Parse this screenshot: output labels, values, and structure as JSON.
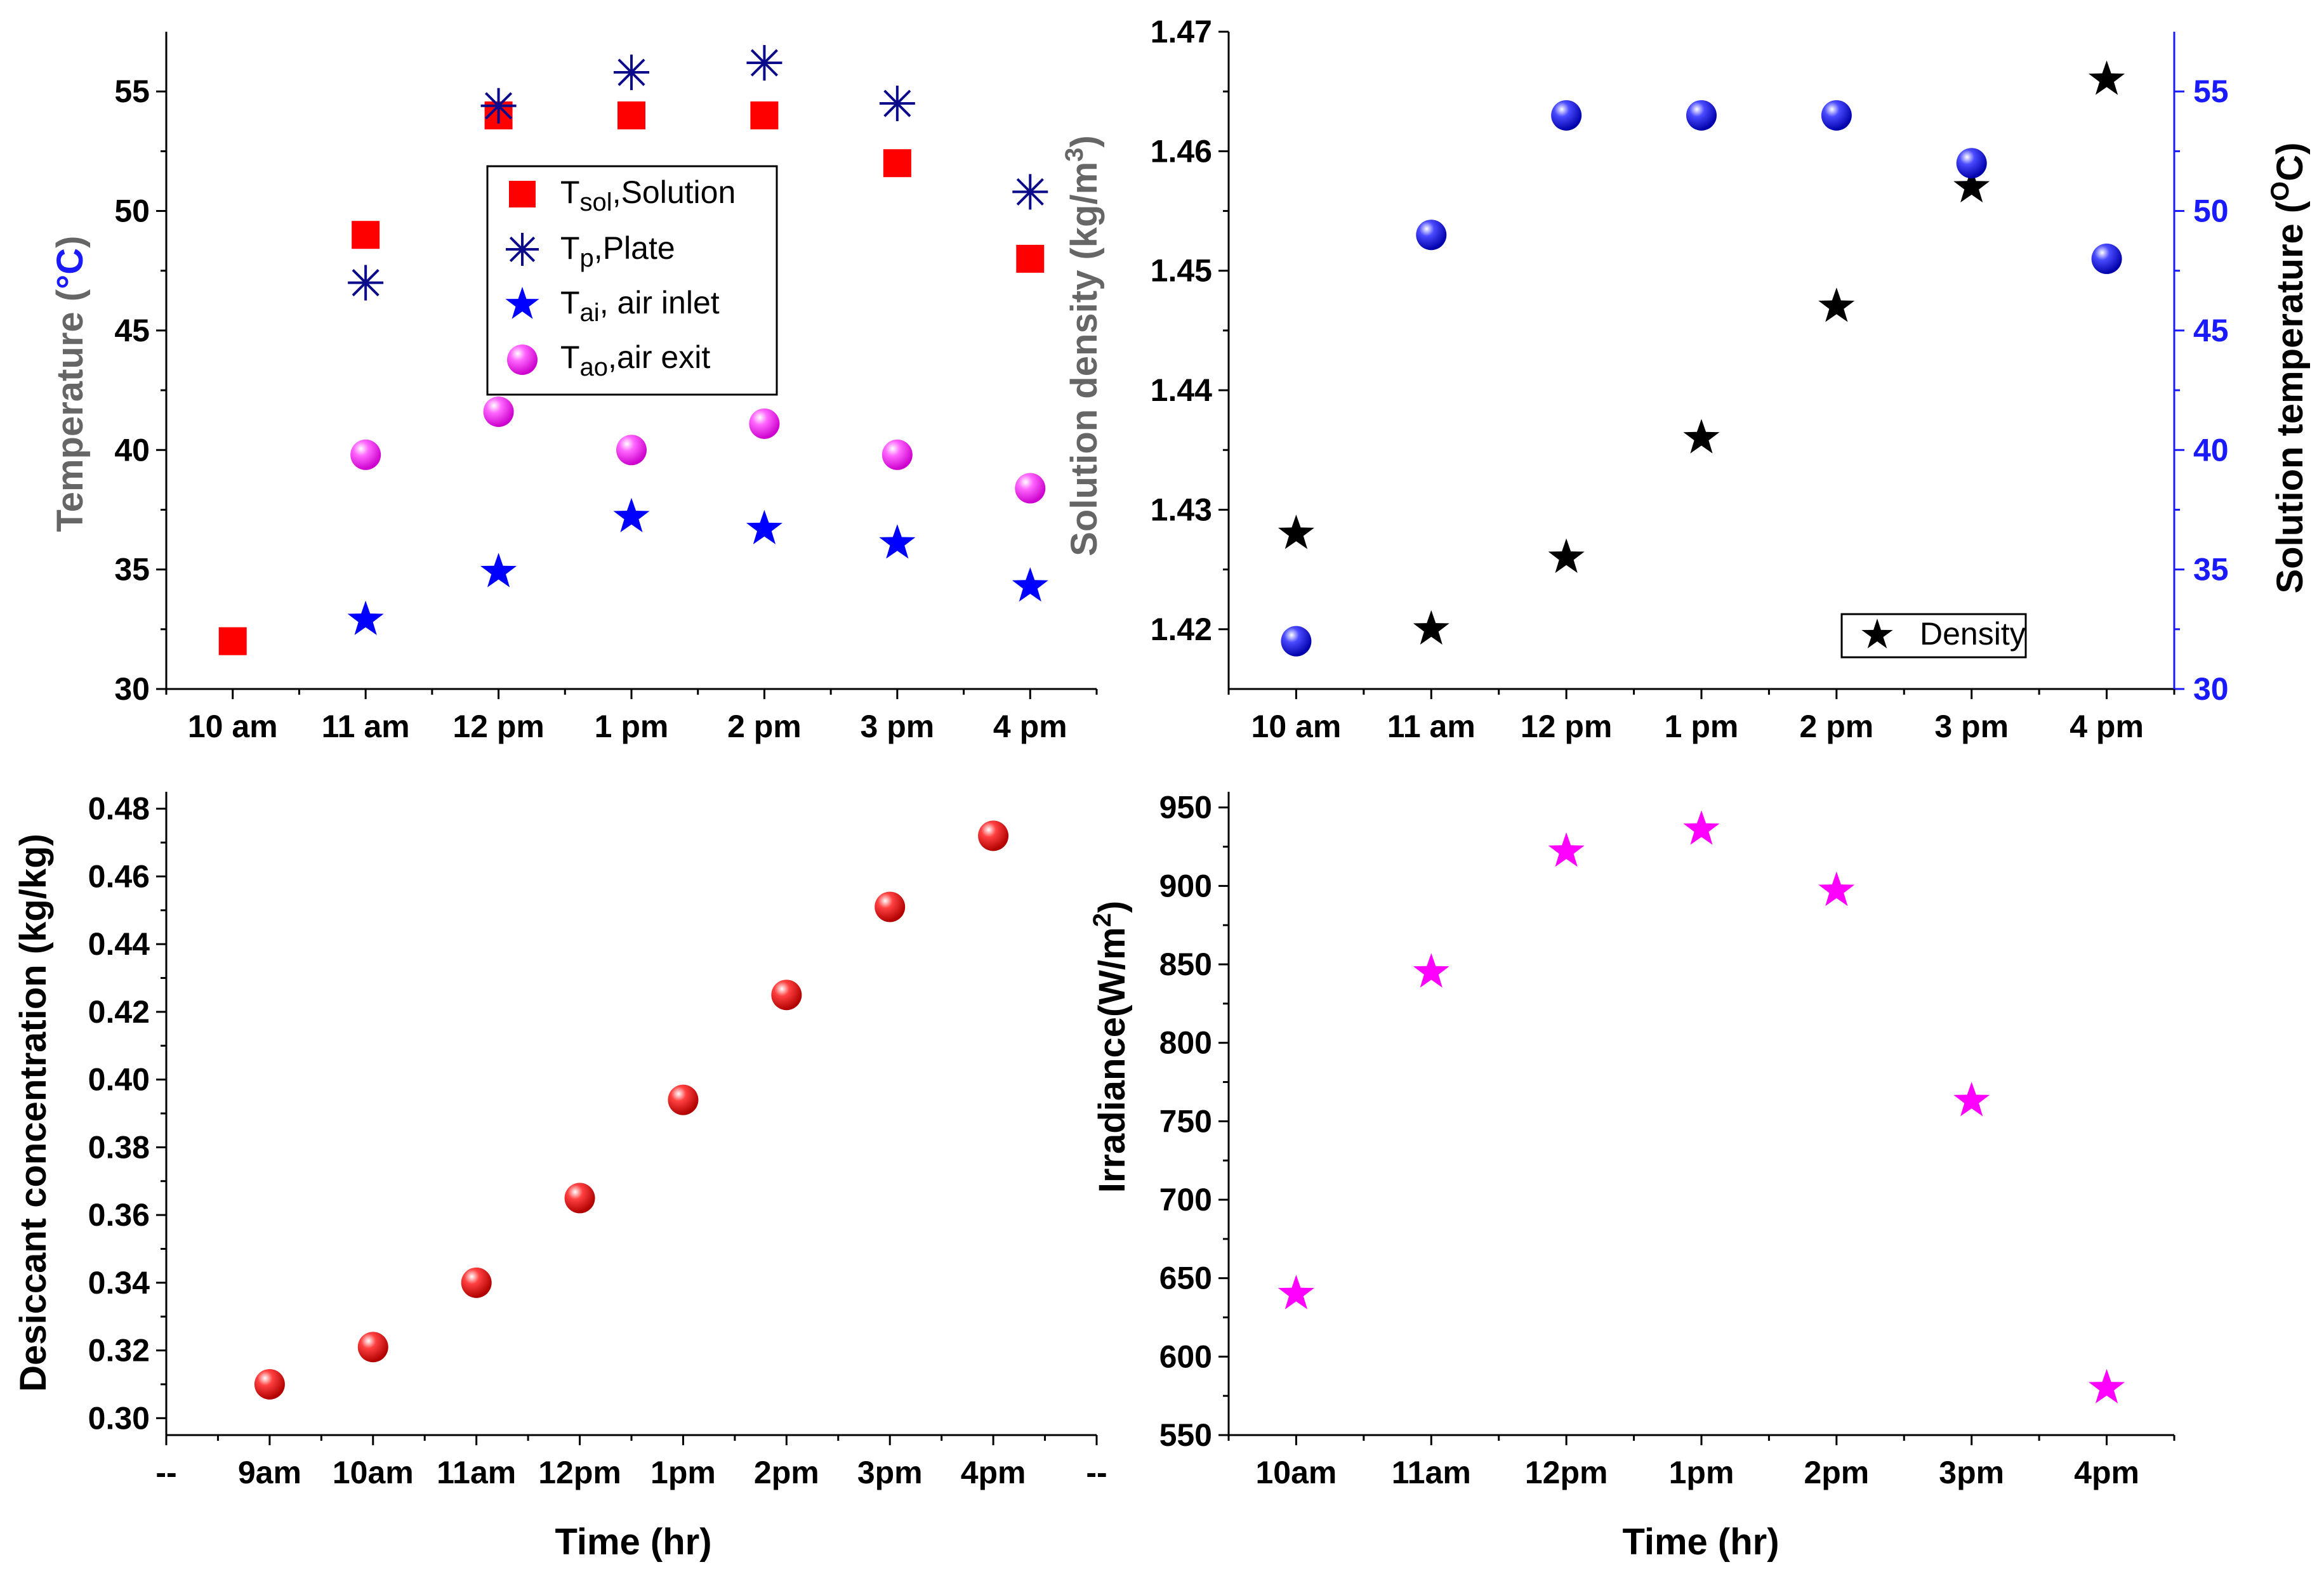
{
  "colors": {
    "axis": "#000000",
    "grey_label": "#666666",
    "blue_label": "#1a1aff",
    "red": "#ff0000",
    "navy": "#0a0a8a",
    "blue": "#0000ff",
    "magenta": "#ff00ff",
    "black": "#000000",
    "sphere_red": "#e00000",
    "sphere_blue": "#1010d0"
  },
  "chart_data": [
    {
      "id": "temperature",
      "type": "scatter",
      "ylabel": "Temperature (°C)",
      "ylabel_parts": [
        "Temperature (",
        "°C",
        ")"
      ],
      "xlabel": "",
      "ylim": [
        30,
        57.5
      ],
      "yticks": [
        30,
        35,
        40,
        45,
        50,
        55
      ],
      "xlim": [
        0.5,
        7.5
      ],
      "categories": [
        "10 am",
        "11 am",
        "12 pm",
        "1 pm",
        "2 pm",
        "3 pm",
        "4 pm"
      ],
      "series": [
        {
          "name": "Tsol,Solution",
          "sym": "T",
          "sub": "sol",
          "rest": ",Solution",
          "marker": "square",
          "color": "#ff0000",
          "x": [
            1,
            2,
            3,
            4,
            5,
            6,
            7
          ],
          "values": [
            32,
            49,
            54,
            54,
            54,
            52,
            48
          ]
        },
        {
          "name": "Tp,Plate",
          "sym": "T",
          "sub": "p",
          "rest": ",Plate",
          "marker": "asterisk",
          "color": "#0a0a8a",
          "x": [
            2,
            3,
            4,
            5,
            6,
            7
          ],
          "values": [
            47,
            54.4,
            55.8,
            56.2,
            54.5,
            50.8
          ]
        },
        {
          "name": "Tai, air inlet",
          "sym": "T",
          "sub": "ai",
          "rest": ", air inlet",
          "marker": "star",
          "color": "#0000ff",
          "x": [
            2,
            3,
            4,
            5,
            6,
            7
          ],
          "values": [
            32.9,
            34.9,
            37.2,
            36.7,
            36.1,
            34.3
          ]
        },
        {
          "name": "Tao,air exit",
          "sym": "T",
          "sub": "ao",
          "rest": ",air exit",
          "marker": "sphere",
          "color": "#ff00ff",
          "x": [
            2,
            3,
            4,
            5,
            6,
            7
          ],
          "values": [
            39.8,
            41.6,
            40,
            41.1,
            39.8,
            38.4
          ]
        }
      ],
      "legend": "top-center"
    },
    {
      "id": "density",
      "type": "scatter",
      "ylabel": "Solution density (kg/m3)",
      "ylabel_parts": [
        "Solution density (kg/m",
        "3",
        ")"
      ],
      "y2label": "Solution temperature (OC)",
      "y2label_parts": [
        "Solution temperature (",
        "O",
        "C)"
      ],
      "ylim": [
        1.415,
        1.47
      ],
      "yticks": [
        1.42,
        1.43,
        1.44,
        1.45,
        1.46,
        1.47
      ],
      "ytick_labels": [
        "1.42",
        "1.43",
        "1.44",
        "1.45",
        "1.46",
        "1.47"
      ],
      "y2lim": [
        30,
        57.5
      ],
      "y2ticks": [
        30,
        35,
        40,
        45,
        50,
        55
      ],
      "xlim": [
        0.5,
        7.5
      ],
      "categories": [
        "10 am",
        "11 am",
        "12 pm",
        "1 pm",
        "2 pm",
        "3 pm",
        "4 pm"
      ],
      "series": [
        {
          "name": "Density",
          "axis": "left",
          "marker": "star",
          "color": "#000000",
          "x": [
            1,
            2,
            3,
            4,
            5,
            6,
            7
          ],
          "values": [
            1.428,
            1.42,
            1.426,
            1.436,
            1.447,
            1.457,
            1.466
          ]
        },
        {
          "name": "Solution temperature",
          "axis": "right",
          "marker": "sphere",
          "color": "#1010d0",
          "x": [
            1,
            2,
            3,
            4,
            5,
            6,
            7
          ],
          "values": [
            32,
            49,
            54,
            54,
            54,
            52,
            48
          ]
        }
      ],
      "legend": "bottom-right",
      "legend_entries": [
        "Density"
      ]
    },
    {
      "id": "concentration",
      "type": "scatter",
      "ylabel": "Desiccant concentration (kg/kg)",
      "xlabel": "Time (hr)",
      "ylim": [
        0.295,
        0.485
      ],
      "yticks": [
        0.3,
        0.32,
        0.34,
        0.36,
        0.38,
        0.4,
        0.42,
        0.44,
        0.46,
        0.48
      ],
      "ytick_labels": [
        "0.30",
        "0.32",
        "0.34",
        "0.36",
        "0.38",
        "0.40",
        "0.42",
        "0.44",
        "0.46",
        "0.48"
      ],
      "xlim": [
        0,
        9
      ],
      "categories": [
        "--",
        "9am",
        "10am",
        "11am",
        "12pm",
        "1pm",
        "2pm",
        "3pm",
        "4pm",
        "--"
      ],
      "series": [
        {
          "name": "Desiccant concentration",
          "marker": "sphere",
          "color": "#e00000",
          "x": [
            1,
            2,
            3,
            4,
            5,
            6,
            7,
            8
          ],
          "values": [
            0.31,
            0.321,
            0.34,
            0.365,
            0.394,
            0.425,
            0.451,
            0.472
          ]
        }
      ]
    },
    {
      "id": "irradiance",
      "type": "scatter",
      "ylabel": "Irradiance(W/m2)",
      "ylabel_parts": [
        "Irradiance(W/m",
        "2",
        ")"
      ],
      "xlabel": "Time (hr)",
      "ylim": [
        550,
        960
      ],
      "yticks": [
        550,
        600,
        650,
        700,
        750,
        800,
        850,
        900,
        950
      ],
      "xlim": [
        0.5,
        7.5
      ],
      "categories": [
        "10am",
        "11am",
        "12pm",
        "1pm",
        "2pm",
        "3pm",
        "4pm"
      ],
      "series": [
        {
          "name": "Irradiance",
          "marker": "star",
          "color": "#ff00ff",
          "x": [
            1,
            2,
            3,
            4,
            5,
            6,
            7
          ],
          "values": [
            640,
            845,
            922,
            936,
            897,
            763,
            580
          ]
        }
      ]
    }
  ]
}
